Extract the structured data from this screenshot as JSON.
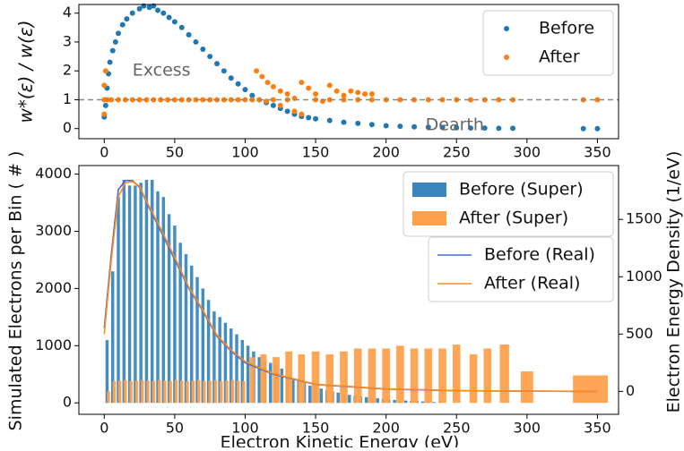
{
  "chart_data": [
    {
      "type": "scatter",
      "ylabel": "w*(ε) / w(ε)",
      "annotations": [
        {
          "text": "Excess",
          "x": 20,
          "y": 2.0
        },
        {
          "text": "Dearth",
          "x": 228,
          "y": 0.12
        }
      ],
      "hline": 1,
      "xlim": [
        -18,
        365
      ],
      "ylim": [
        -0.35,
        4.3
      ],
      "xticks": [
        0,
        50,
        100,
        150,
        200,
        250,
        300,
        350
      ],
      "yticks": [
        0,
        1,
        2,
        3,
        4
      ],
      "legend": "upper right",
      "series": [
        {
          "name": "Before",
          "color": "#1f77b4",
          "x": [
            0,
            1,
            2,
            3,
            4,
            6,
            8,
            10,
            13,
            16,
            20,
            25,
            28,
            32,
            35,
            38,
            42,
            46,
            50,
            55,
            60,
            65,
            70,
            75,
            80,
            85,
            90,
            95,
            100,
            105,
            110,
            115,
            120,
            125,
            130,
            135,
            140,
            145,
            150,
            160,
            170,
            180,
            190,
            200,
            210,
            220,
            230,
            240,
            250,
            260,
            270,
            280,
            290,
            340,
            350
          ],
          "values": [
            0.4,
            0.8,
            1.4,
            1.9,
            2.3,
            2.7,
            3.0,
            3.3,
            3.6,
            3.8,
            4.0,
            4.15,
            4.25,
            4.2,
            4.25,
            4.1,
            4.0,
            3.85,
            3.7,
            3.5,
            3.25,
            3.0,
            2.75,
            2.5,
            2.25,
            2.0,
            1.75,
            1.55,
            1.35,
            1.15,
            1.0,
            0.9,
            0.8,
            0.7,
            0.6,
            0.5,
            0.42,
            0.38,
            0.34,
            0.28,
            0.22,
            0.18,
            0.14,
            0.1,
            0.08,
            0.06,
            0.05,
            0.04,
            0.03,
            0.02,
            0.02,
            0.01,
            0.01,
            0,
            0
          ]
        },
        {
          "name": "After",
          "color": "#ff7f0e",
          "x": [
            0,
            0,
            0,
            1,
            2,
            5,
            10,
            15,
            20,
            25,
            30,
            35,
            40,
            45,
            50,
            55,
            60,
            65,
            70,
            75,
            80,
            85,
            90,
            95,
            100,
            105,
            108,
            112,
            116,
            120,
            125,
            130,
            135,
            115,
            125,
            135,
            140,
            140,
            145,
            150,
            155,
            160,
            165,
            170,
            175,
            180,
            185,
            190,
            110,
            120,
            130,
            150,
            160,
            170,
            180,
            190,
            200,
            210,
            220,
            230,
            240,
            250,
            260,
            270,
            280,
            290,
            340,
            350
          ],
          "values": [
            0.5,
            1.0,
            1.5,
            2.0,
            1.0,
            1,
            1,
            1,
            1,
            1,
            1,
            1,
            1,
            1,
            1,
            1,
            1,
            1,
            1,
            1,
            1,
            1,
            1,
            1,
            1,
            1,
            2.0,
            1.8,
            1.6,
            1.45,
            1.3,
            1.2,
            1.05,
            0.95,
            0.8,
            0.6,
            0.5,
            1.6,
            1.4,
            1.2,
            0.95,
            1.5,
            1.3,
            1.15,
            1.3,
            1.25,
            1.2,
            1.2,
            1,
            1,
            1,
            1,
            1,
            1,
            1,
            1,
            1,
            1,
            1,
            1,
            1,
            1,
            1,
            1,
            1,
            1,
            1,
            1
          ]
        }
      ]
    },
    {
      "type": "bar",
      "xlabel": "Electron Kinetic Energy (eV)",
      "ylabel": "Simulated Electrons per Bin ( # )",
      "y2label": "Electron Energy Density (1/eV)",
      "xlim": [
        -18,
        365
      ],
      "ylim": [
        -200,
        4150
      ],
      "y2lim": [
        -200,
        1970
      ],
      "xticks": [
        0,
        50,
        100,
        150,
        200,
        250,
        300,
        350
      ],
      "yticks": [
        0,
        1000,
        2000,
        3000,
        4000
      ],
      "y2ticks": [
        0,
        500,
        1000,
        1500
      ],
      "legend": "upper right",
      "series": [
        {
          "name": "Before (Super)",
          "color": "#3a87c0",
          "x": [
            2,
            6,
            10,
            14,
            18,
            22,
            26,
            30,
            34,
            38,
            42,
            46,
            50,
            54,
            58,
            62,
            66,
            70,
            74,
            78,
            82,
            86,
            90,
            94,
            98,
            102,
            106,
            110,
            114,
            118,
            122,
            126,
            130,
            134,
            138,
            142,
            146,
            150,
            154,
            158,
            162,
            166,
            170,
            174,
            178,
            182,
            186,
            190,
            194,
            198,
            202,
            206,
            210,
            214,
            218,
            222,
            226,
            230,
            234,
            238
          ],
          "values": [
            1100,
            2300,
            3600,
            3900,
            3800,
            3800,
            3850,
            3900,
            3900,
            3700,
            3600,
            3300,
            3100,
            2800,
            2600,
            2400,
            2200,
            2000,
            1800,
            1600,
            1500,
            1400,
            1300,
            1200,
            1100,
            1000,
            900,
            800,
            750,
            700,
            650,
            600,
            450,
            400,
            380,
            350,
            300,
            280,
            250,
            220,
            200,
            180,
            150,
            140,
            130,
            110,
            100,
            90,
            80,
            70,
            60,
            50,
            45,
            40,
            35,
            30,
            25,
            20,
            15,
            10
          ]
        },
        {
          "name": "After (Super)",
          "color": "#ffa04d",
          "x": [
            3,
            7,
            11,
            15,
            19,
            23,
            27,
            31,
            35,
            39,
            43,
            47,
            51,
            55,
            59,
            63,
            67,
            71,
            75,
            79,
            83,
            87,
            91,
            95,
            99,
            105,
            113,
            122,
            131,
            140,
            150,
            160,
            170,
            180,
            190,
            200,
            210,
            220,
            230,
            240,
            250,
            262,
            272,
            284,
            300,
            345
          ],
          "values": [
            200,
            380,
            390,
            400,
            380,
            390,
            400,
            390,
            380,
            400,
            390,
            380,
            400,
            390,
            380,
            390,
            400,
            380,
            390,
            400,
            380,
            390,
            400,
            390,
            380,
            800,
            850,
            800,
            900,
            850,
            900,
            850,
            900,
            950,
            950,
            950,
            1000,
            950,
            950,
            950,
            1020,
            850,
            950,
            1020,
            550,
            480
          ]
        },
        {
          "name": "Before (Real)",
          "color": "#4169e1",
          "axis": "y2",
          "x": [
            0,
            5,
            10,
            15,
            20,
            25,
            30,
            40,
            50,
            60,
            70,
            80,
            90,
            100,
            120,
            150,
            200,
            250,
            300,
            350
          ],
          "values": [
            550,
            1200,
            1760,
            1840,
            1840,
            1780,
            1650,
            1400,
            1150,
            900,
            700,
            480,
            350,
            250,
            150,
            60,
            20,
            5,
            2,
            0
          ]
        },
        {
          "name": "After (Real)",
          "color": "#ff8c1a",
          "axis": "y2",
          "x": [
            0,
            5,
            10,
            15,
            20,
            25,
            30,
            40,
            50,
            60,
            70,
            80,
            90,
            100,
            120,
            150,
            200,
            250,
            300,
            350
          ],
          "values": [
            500,
            1150,
            1700,
            1820,
            1830,
            1790,
            1660,
            1420,
            1170,
            910,
            710,
            490,
            360,
            260,
            155,
            62,
            22,
            6,
            2,
            0
          ]
        }
      ]
    }
  ]
}
